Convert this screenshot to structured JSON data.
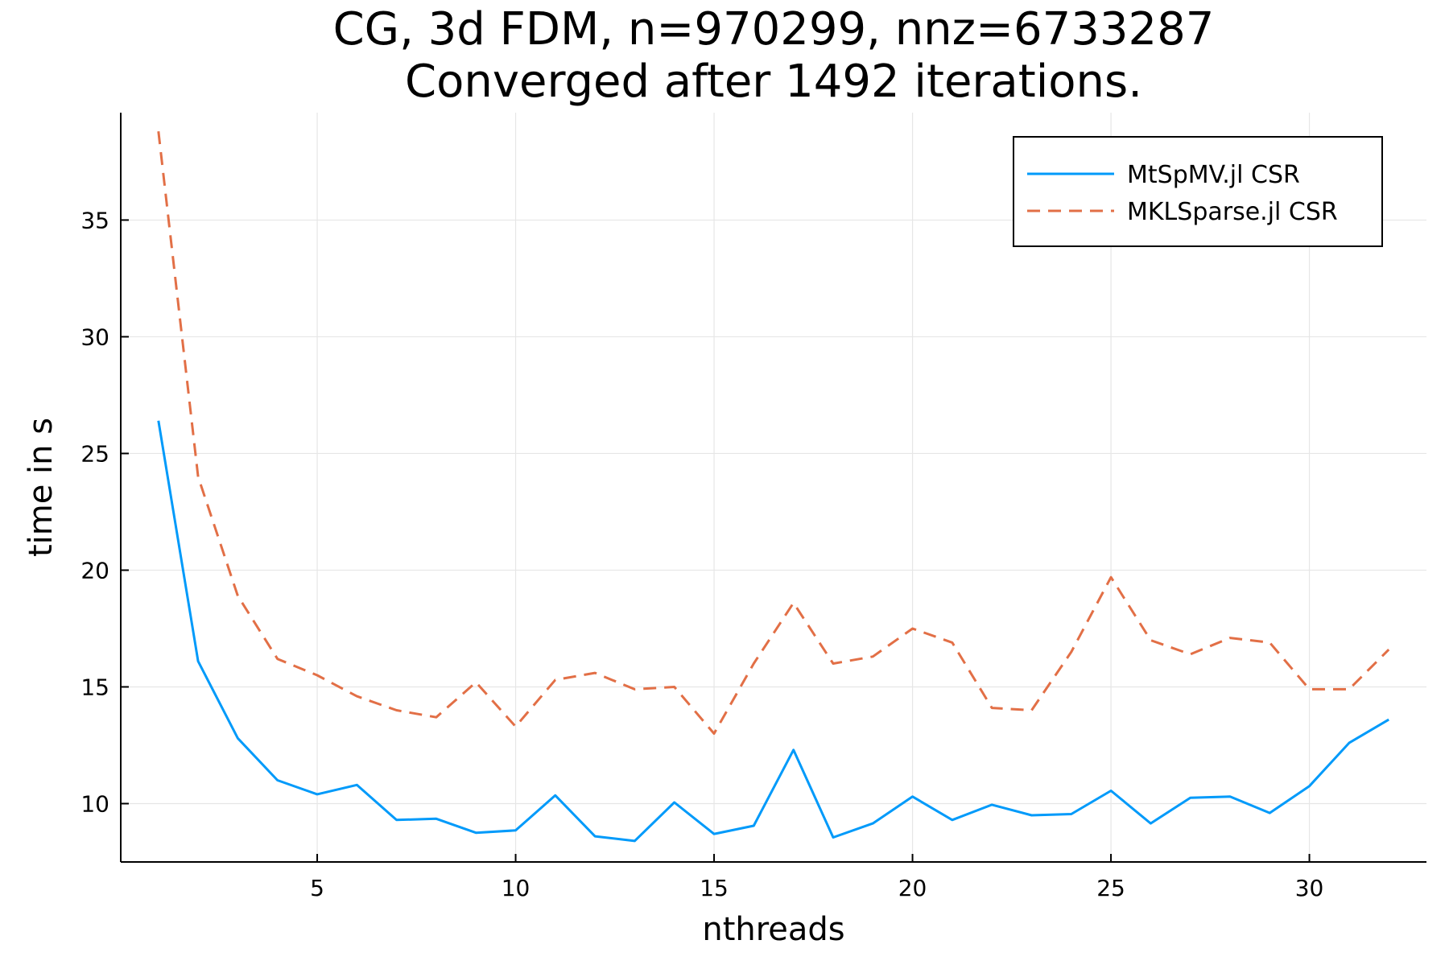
{
  "chart_data": {
    "type": "line",
    "title": "CG, 3d FDM, n=970299, nnz=6733287",
    "subtitle": "Converged after 1492 iterations.",
    "xlabel": "nthreads",
    "ylabel": "time in s",
    "xlim": [
      0.05,
      32.95
    ],
    "ylim": [
      7.5,
      39.6
    ],
    "xticks": [
      5,
      10,
      15,
      20,
      25,
      30
    ],
    "yticks": [
      10,
      15,
      20,
      25,
      30,
      35
    ],
    "grid": true,
    "legend_position": "top-right",
    "x": [
      1,
      2,
      3,
      4,
      5,
      6,
      7,
      8,
      9,
      10,
      11,
      12,
      13,
      14,
      15,
      16,
      17,
      18,
      19,
      20,
      21,
      22,
      23,
      24,
      25,
      26,
      27,
      28,
      29,
      30,
      31,
      32
    ],
    "series": [
      {
        "name": "MtSpMV.jl CSR",
        "color": "#009AFA",
        "style": "solid",
        "values": [
          26.4,
          16.1,
          12.8,
          11.0,
          10.4,
          10.8,
          9.3,
          9.35,
          8.75,
          8.85,
          10.35,
          8.6,
          8.4,
          10.05,
          8.7,
          9.05,
          12.3,
          8.55,
          9.15,
          10.3,
          9.3,
          9.95,
          9.5,
          9.55,
          10.55,
          9.15,
          10.25,
          10.3,
          9.6,
          10.75,
          12.6,
          13.6
        ]
      },
      {
        "name": "MKLSparse.jl CSR",
        "color": "#E26F46",
        "style": "dashed",
        "values": [
          38.8,
          24.0,
          18.9,
          16.2,
          15.5,
          14.6,
          14.0,
          13.7,
          15.2,
          13.3,
          15.3,
          15.6,
          14.9,
          15.0,
          13.0,
          16.0,
          18.6,
          16.0,
          16.3,
          17.5,
          16.9,
          14.1,
          14.0,
          16.5,
          19.7,
          17.0,
          16.4,
          17.1,
          16.9,
          14.9,
          14.9,
          16.6
        ]
      }
    ]
  }
}
